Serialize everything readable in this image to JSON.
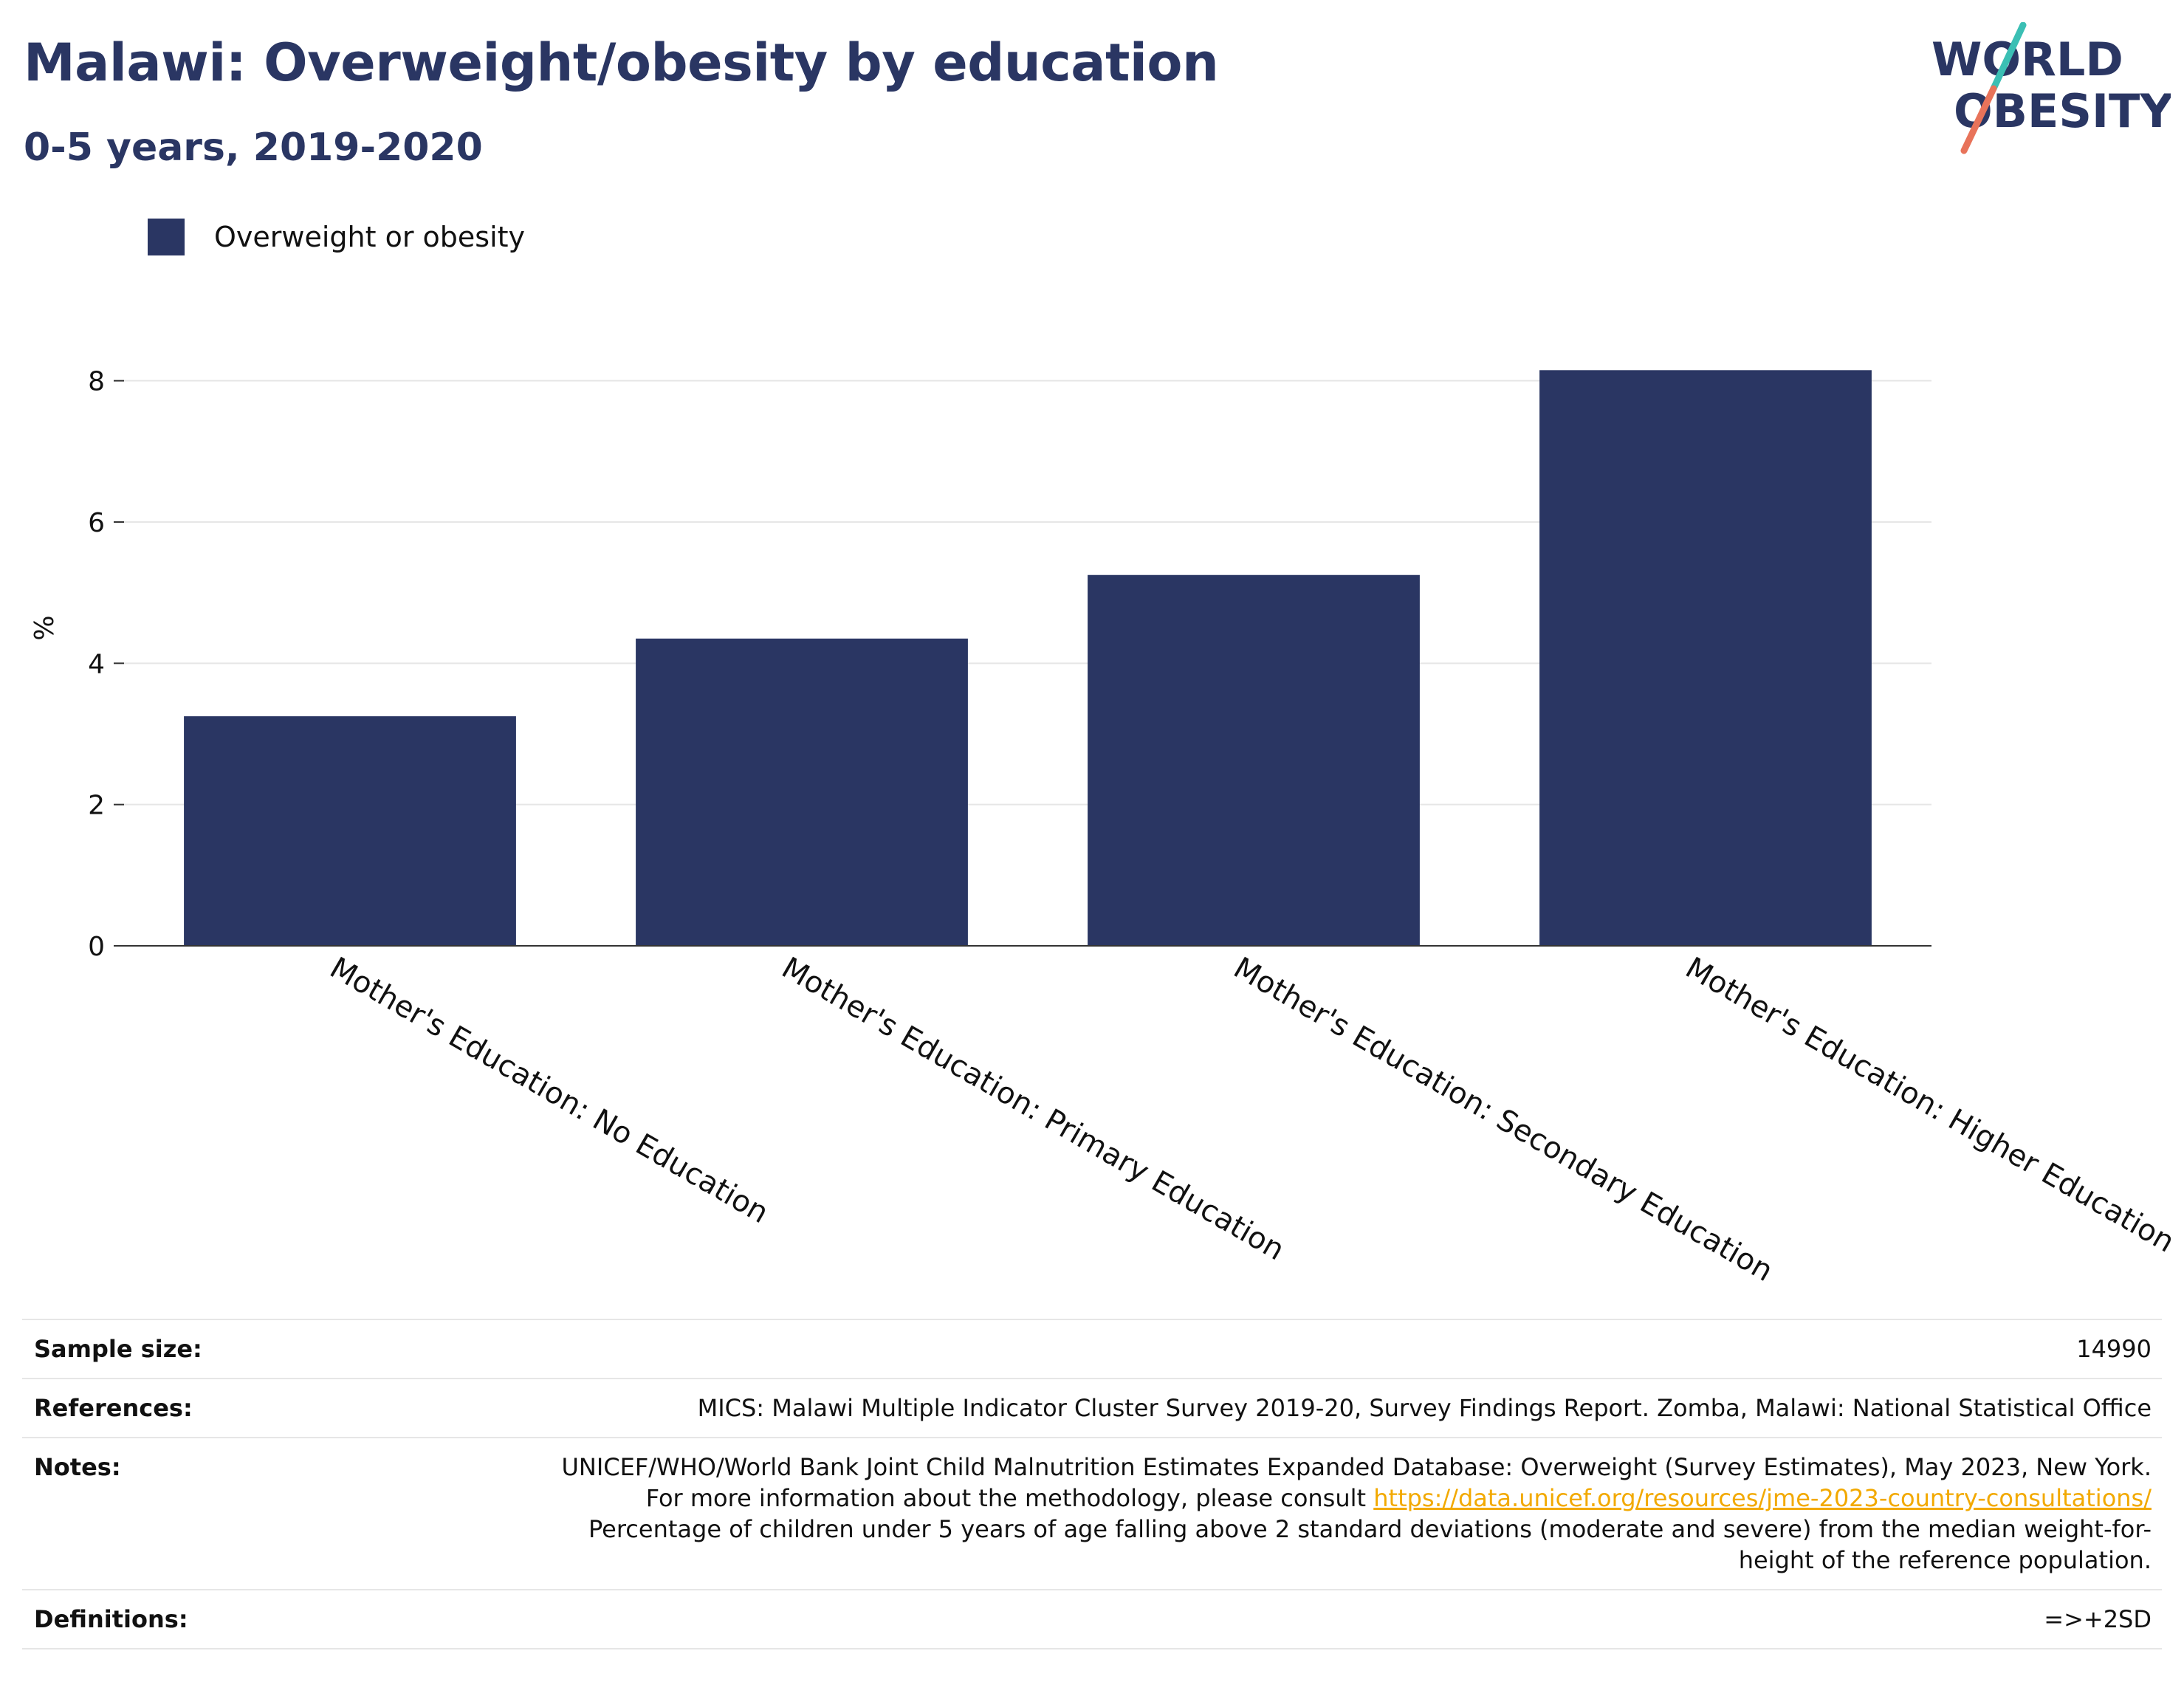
{
  "header": {
    "title": "Malawi: Overweight/obesity by education",
    "subtitle": "0-5 years, 2019-2020"
  },
  "logo": {
    "line1": "WORLD",
    "line2": "OBESITY",
    "text_color": "#2a3663",
    "slash_top_color": "#3bbfb4",
    "slash_bottom_color": "#e8735a"
  },
  "legend": {
    "label": "Overweight or obesity",
    "color": "#2a3663"
  },
  "chart_data": {
    "type": "bar",
    "categories": [
      "Mother's Education: No Education",
      "Mother's Education: Primary Education",
      "Mother's Education: Secondary Education",
      "Mother's Education: Higher Education"
    ],
    "series": [
      {
        "name": "Overweight or obesity",
        "values": [
          3.25,
          4.35,
          5.25,
          8.15
        ],
        "color": "#2a3663"
      }
    ],
    "title": "Malawi: Overweight/obesity by education",
    "subtitle": "0-5 years, 2019-2020",
    "xlabel": "",
    "ylabel": "%",
    "ylim": [
      0,
      9
    ],
    "yticks": [
      0,
      2,
      4,
      6,
      8
    ],
    "grid": true,
    "legend_position": "top-left",
    "xtick_rotation": 30
  },
  "info": {
    "sample_size": {
      "label": "Sample size:",
      "value": "14990"
    },
    "references": {
      "label": "References:",
      "value": "MICS: Malawi Multiple Indicator Cluster Survey 2019-20, Survey Findings Report. Zomba, Malawi: National Statistical Office"
    },
    "notes": {
      "label": "Notes:",
      "text1": "UNICEF/WHO/World Bank Joint Child Malnutrition Estimates Expanded Database: Overweight (Survey Estimates), May 2023, New York. For more information about the methodology, please consult",
      "link": "https://data.unicef.org/resources/jme-2023-country-consultations/",
      "text2": "Percentage of children under 5 years of age falling above 2 standard deviations (moderate and severe) from the median weight-for-height of the reference population."
    },
    "definitions": {
      "label": "Definitions:",
      "value": "=>+2SD"
    }
  }
}
